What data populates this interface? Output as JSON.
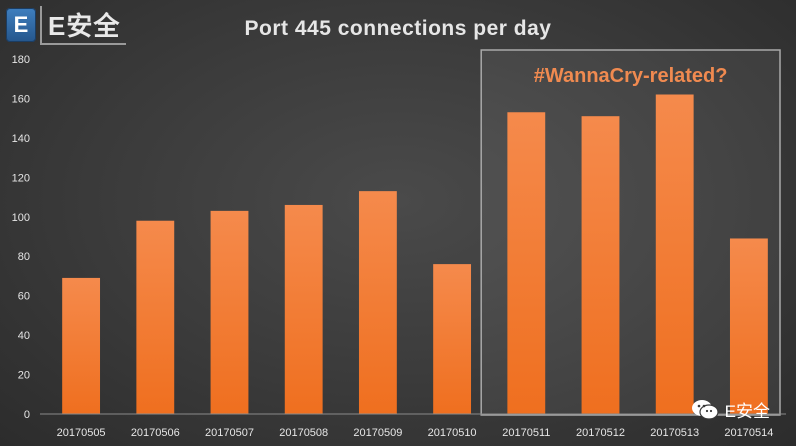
{
  "logo": {
    "badge": "E",
    "text": "E安全"
  },
  "watermark": {
    "text": "E安全",
    "icon": "wechat-icon"
  },
  "colors": {
    "bar_top": "#f58a4c",
    "bar_bottom": "#ef6f1f",
    "highlight_text": "#f08a50",
    "highlight_border": "#a9a9a9",
    "text": "#e6e6e6"
  },
  "chart_data": {
    "type": "bar",
    "title": "Port 445 connections per day",
    "categories": [
      "20170505",
      "20170506",
      "20170507",
      "20170508",
      "20170509",
      "20170510",
      "20170511",
      "20170512",
      "20170513",
      "20170514"
    ],
    "values": [
      69,
      98,
      103,
      106,
      113,
      76,
      153,
      151,
      162,
      89
    ],
    "ylim": [
      0,
      180
    ],
    "yticks": [
      0,
      20,
      40,
      60,
      80,
      100,
      120,
      140,
      160,
      180
    ],
    "grid": false,
    "annotation": {
      "text": "#WannaCry-related?",
      "categories": [
        "20170511",
        "20170512",
        "20170513",
        "20170514"
      ]
    }
  }
}
